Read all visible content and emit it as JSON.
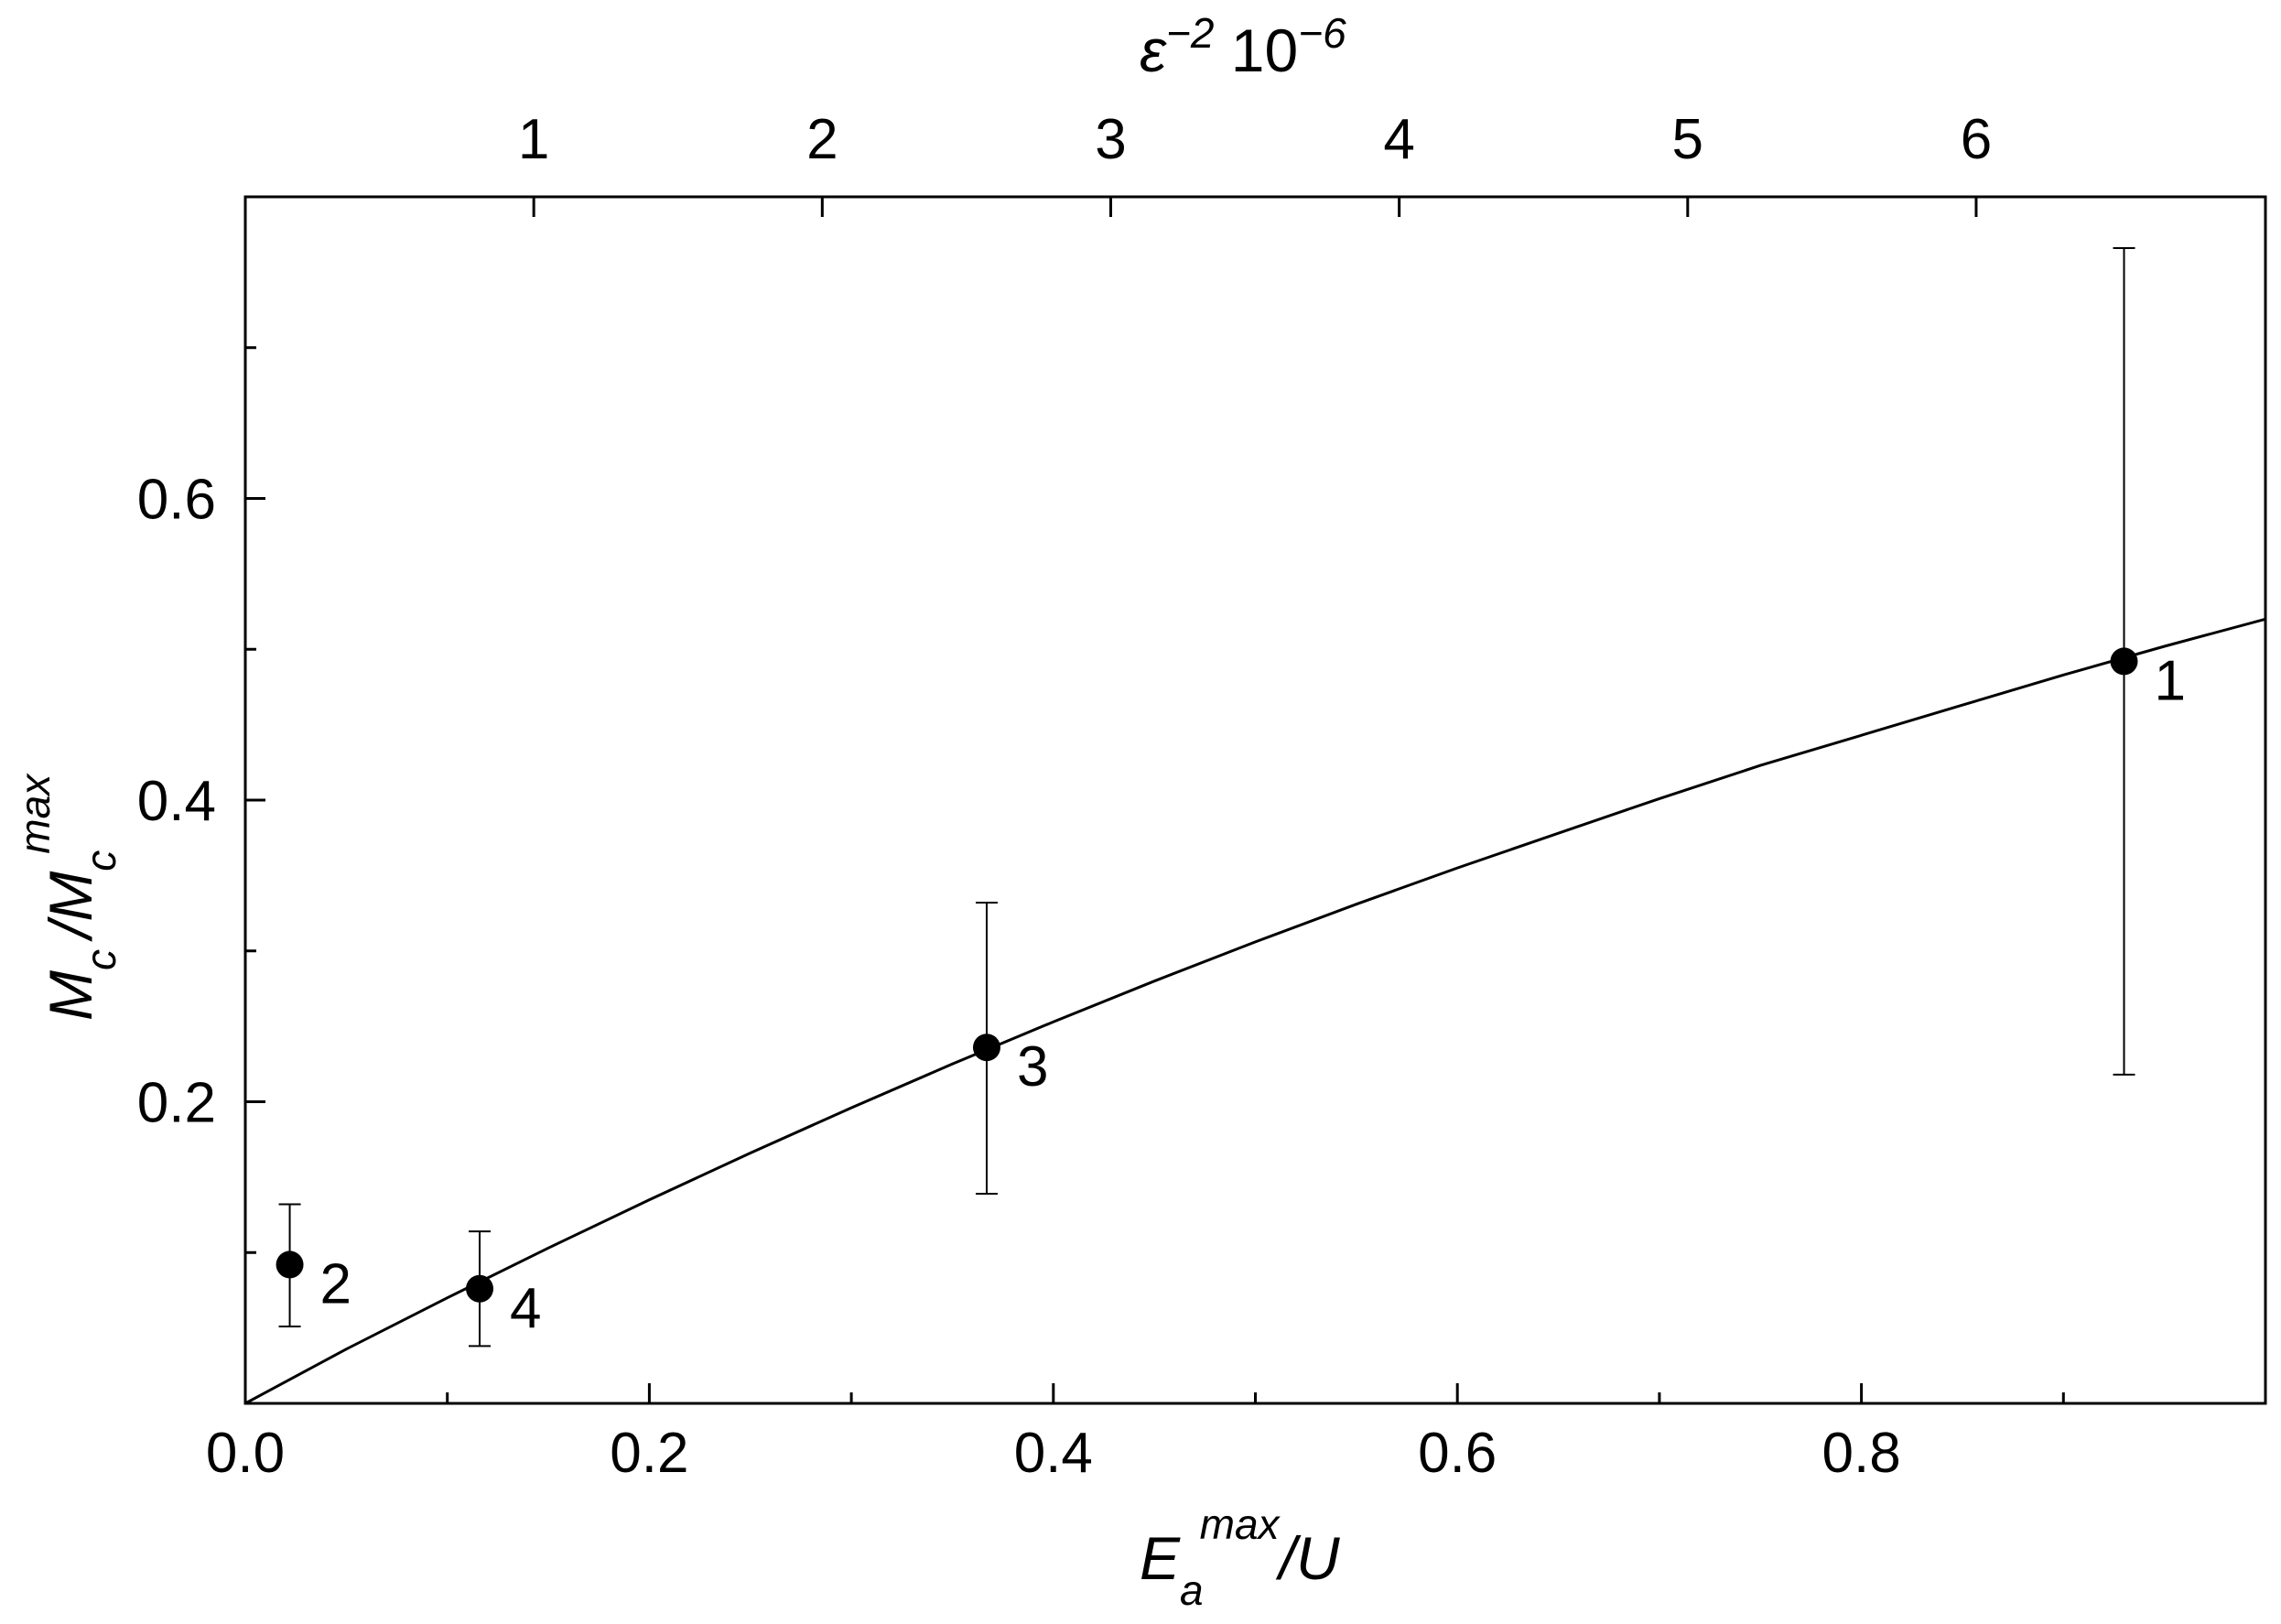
{
  "chart_data": {
    "type": "scatter",
    "title": "",
    "x": {
      "min": 0.0,
      "max": 1.0,
      "ticks": [
        0.0,
        0.2,
        0.4,
        0.6,
        0.8
      ],
      "tick_labels": [
        "0.0",
        "0.2",
        "0.4",
        "0.6",
        "0.8"
      ],
      "minor_step": 0.1,
      "label": {
        "base": "E",
        "sub": "a",
        "sup": "max",
        "rest": "/U"
      }
    },
    "y": {
      "min": 0.0,
      "max": 0.8,
      "ticks": [
        0.2,
        0.4,
        0.6
      ],
      "tick_labels": [
        "0.2",
        "0.4",
        "0.6"
      ],
      "minor_step": 0.1,
      "label": {
        "base": "M",
        "sub": "c",
        "mid": "/M",
        "sub2": "c",
        "sup": "max"
      }
    },
    "x_top": {
      "unit_in_bottom_axis": 0.1428,
      "ticks": [
        1,
        2,
        3,
        4,
        5,
        6
      ],
      "tick_labels": [
        "1",
        "2",
        "3",
        "4",
        "5",
        "6"
      ],
      "label": {
        "base": "ε",
        "sup": "−2",
        "rest": " 10",
        "sup2": "−6"
      }
    },
    "points": [
      {
        "label": "1",
        "x": 0.93,
        "y": 0.492,
        "y_err_low": 0.218,
        "y_err_high": 0.766
      },
      {
        "label": "2",
        "x": 0.022,
        "y": 0.092,
        "y_err_low": 0.051,
        "y_err_high": 0.132
      },
      {
        "label": "3",
        "x": 0.367,
        "y": 0.236,
        "y_err_low": 0.139,
        "y_err_high": 0.332
      },
      {
        "label": "4",
        "x": 0.116,
        "y": 0.076,
        "y_err_low": 0.038,
        "y_err_high": 0.114
      }
    ],
    "fit_curve": {
      "x": [
        0.0,
        0.05,
        0.1,
        0.15,
        0.2,
        0.25,
        0.3,
        0.35,
        0.4,
        0.45,
        0.5,
        0.55,
        0.6,
        0.65,
        0.7,
        0.75,
        0.8,
        0.85,
        0.9,
        0.95,
        1.0
      ],
      "y": [
        0.0,
        0.036,
        0.07,
        0.103,
        0.135,
        0.166,
        0.196,
        0.225,
        0.253,
        0.28,
        0.306,
        0.331,
        0.355,
        0.378,
        0.401,
        0.423,
        0.443,
        0.463,
        0.483,
        0.502,
        0.52
      ]
    },
    "grid": false,
    "legend": "none",
    "colors": {
      "ink": "#000000",
      "background": "#ffffff"
    }
  }
}
